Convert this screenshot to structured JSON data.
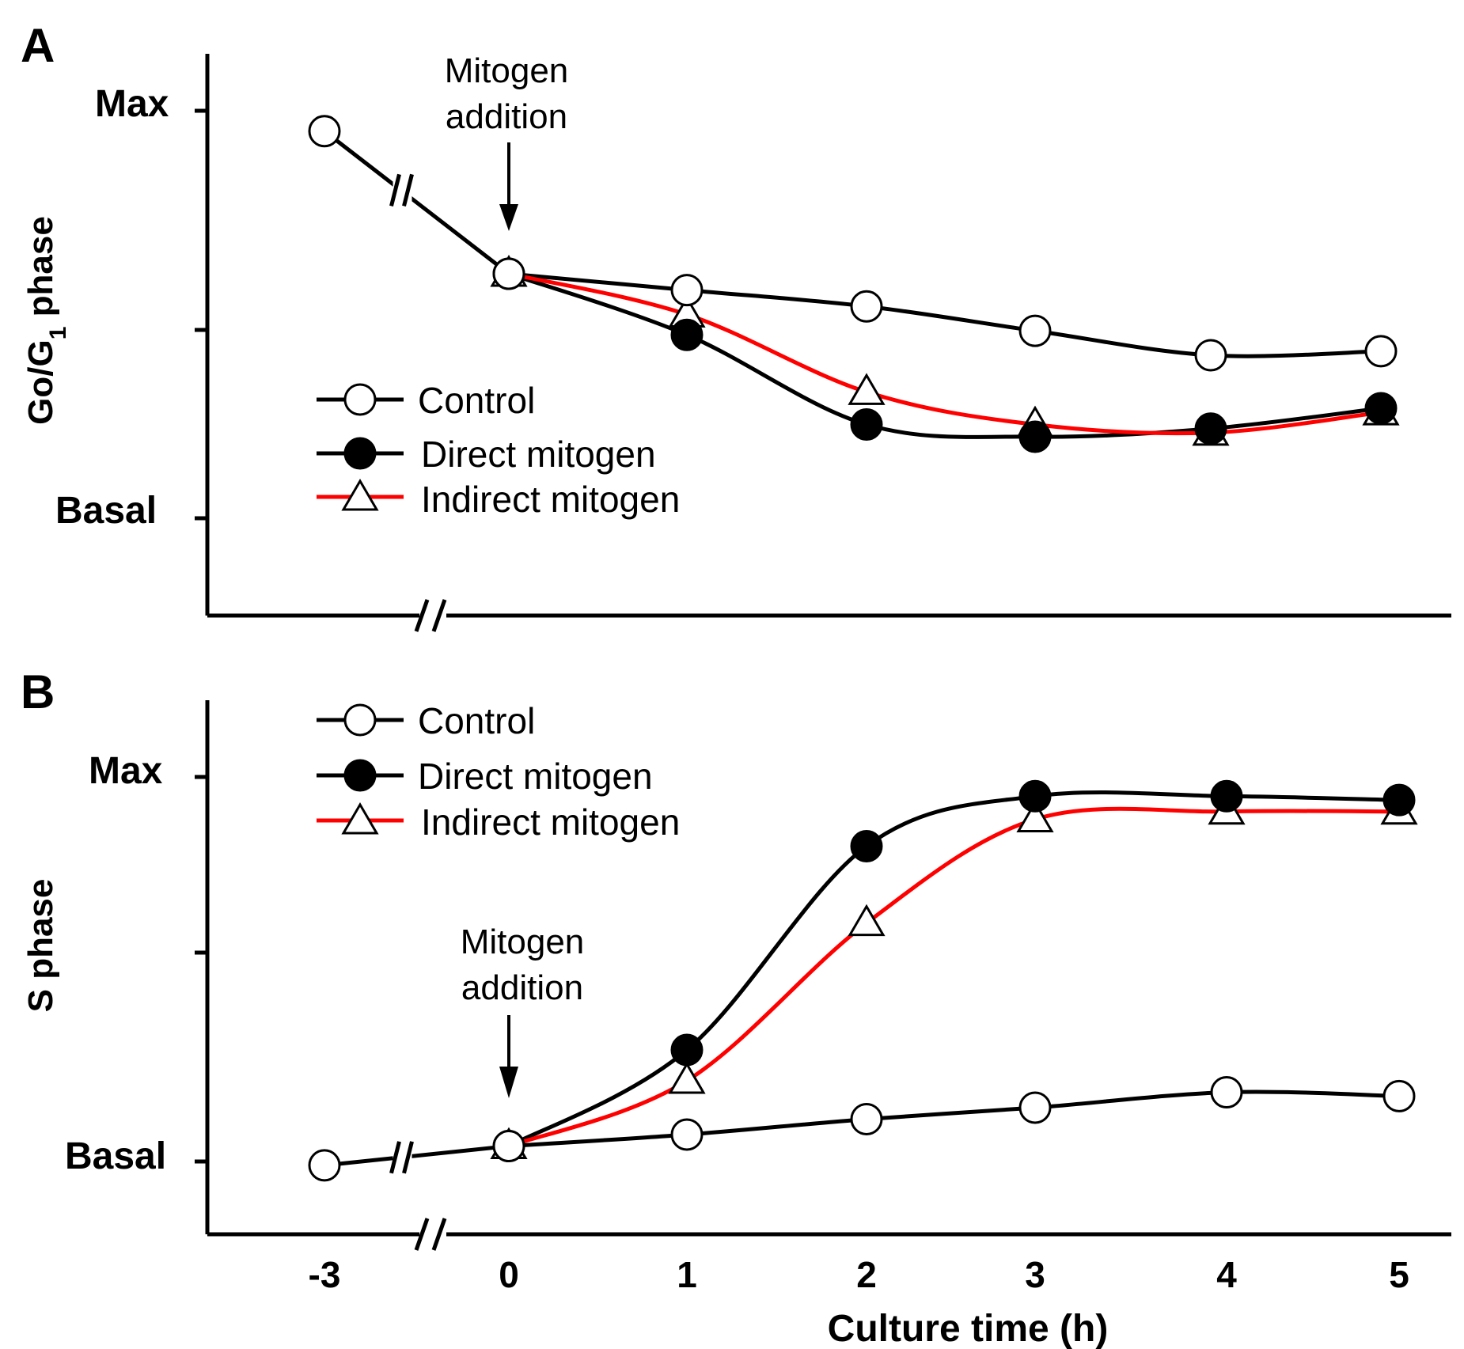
{
  "chart_data": [
    {
      "panel": "A",
      "type": "line",
      "ylabel": "Go/G1 phase",
      "ylabel_main": "Go/G",
      "ylabel_sub": "1",
      "ylabel_tail": " phase",
      "xlabel": "",
      "y_levels": [
        "Max",
        "Basal"
      ],
      "x_ticks": [
        "-3",
        "0",
        "1",
        "2",
        "3",
        "4",
        "5"
      ],
      "x_tick_labels_visible": false,
      "axis_break": true,
      "annotation": {
        "text_line1": "Mitogen",
        "text_line2": "addition",
        "at_x": 0
      },
      "legend_position": "center-left",
      "series": [
        {
          "name": "Control",
          "marker": "open-circle",
          "color": "#000000",
          "x": [
            -3,
            0,
            1,
            2,
            3,
            4,
            5
          ],
          "y": [
            95,
            60,
            56,
            52,
            46,
            40,
            41
          ]
        },
        {
          "name": "Direct mitogen",
          "marker": "filled-circle",
          "color": "#000000",
          "x": [
            0,
            1,
            2,
            3,
            4,
            5
          ],
          "y": [
            60,
            45,
            23,
            20,
            22,
            27
          ]
        },
        {
          "name": "Indirect mitogen",
          "marker": "open-triangle",
          "color": "#ff0000",
          "x": [
            0,
            1,
            2,
            3,
            4,
            5
          ],
          "y": [
            60,
            50,
            31,
            23,
            21,
            26
          ]
        }
      ]
    },
    {
      "panel": "B",
      "type": "line",
      "ylabel": "S phase",
      "xlabel": "Culture time (h)",
      "y_levels": [
        "Max",
        "Basal"
      ],
      "x_ticks": [
        "-3",
        "0",
        "1",
        "2",
        "3",
        "4",
        "5"
      ],
      "x_tick_labels_visible": true,
      "axis_break": true,
      "annotation": {
        "text_line1": "Mitogen",
        "text_line2": "addition",
        "at_x": 0
      },
      "legend_position": "top-left",
      "series": [
        {
          "name": "Control",
          "marker": "open-circle",
          "color": "#000000",
          "x": [
            -3,
            0,
            1,
            2,
            3,
            4,
            5
          ],
          "y": [
            -1,
            4,
            7,
            11,
            14,
            18,
            17
          ]
        },
        {
          "name": "Direct mitogen",
          "marker": "filled-circle",
          "color": "#000000",
          "x": [
            0,
            1,
            2,
            3,
            4,
            5
          ],
          "y": [
            4,
            29,
            82,
            95,
            95,
            94
          ]
        },
        {
          "name": "Indirect mitogen",
          "marker": "open-triangle",
          "color": "#ff0000",
          "x": [
            0,
            1,
            2,
            3,
            4,
            5
          ],
          "y": [
            4,
            21,
            62,
            89,
            91,
            91
          ]
        }
      ]
    }
  ]
}
